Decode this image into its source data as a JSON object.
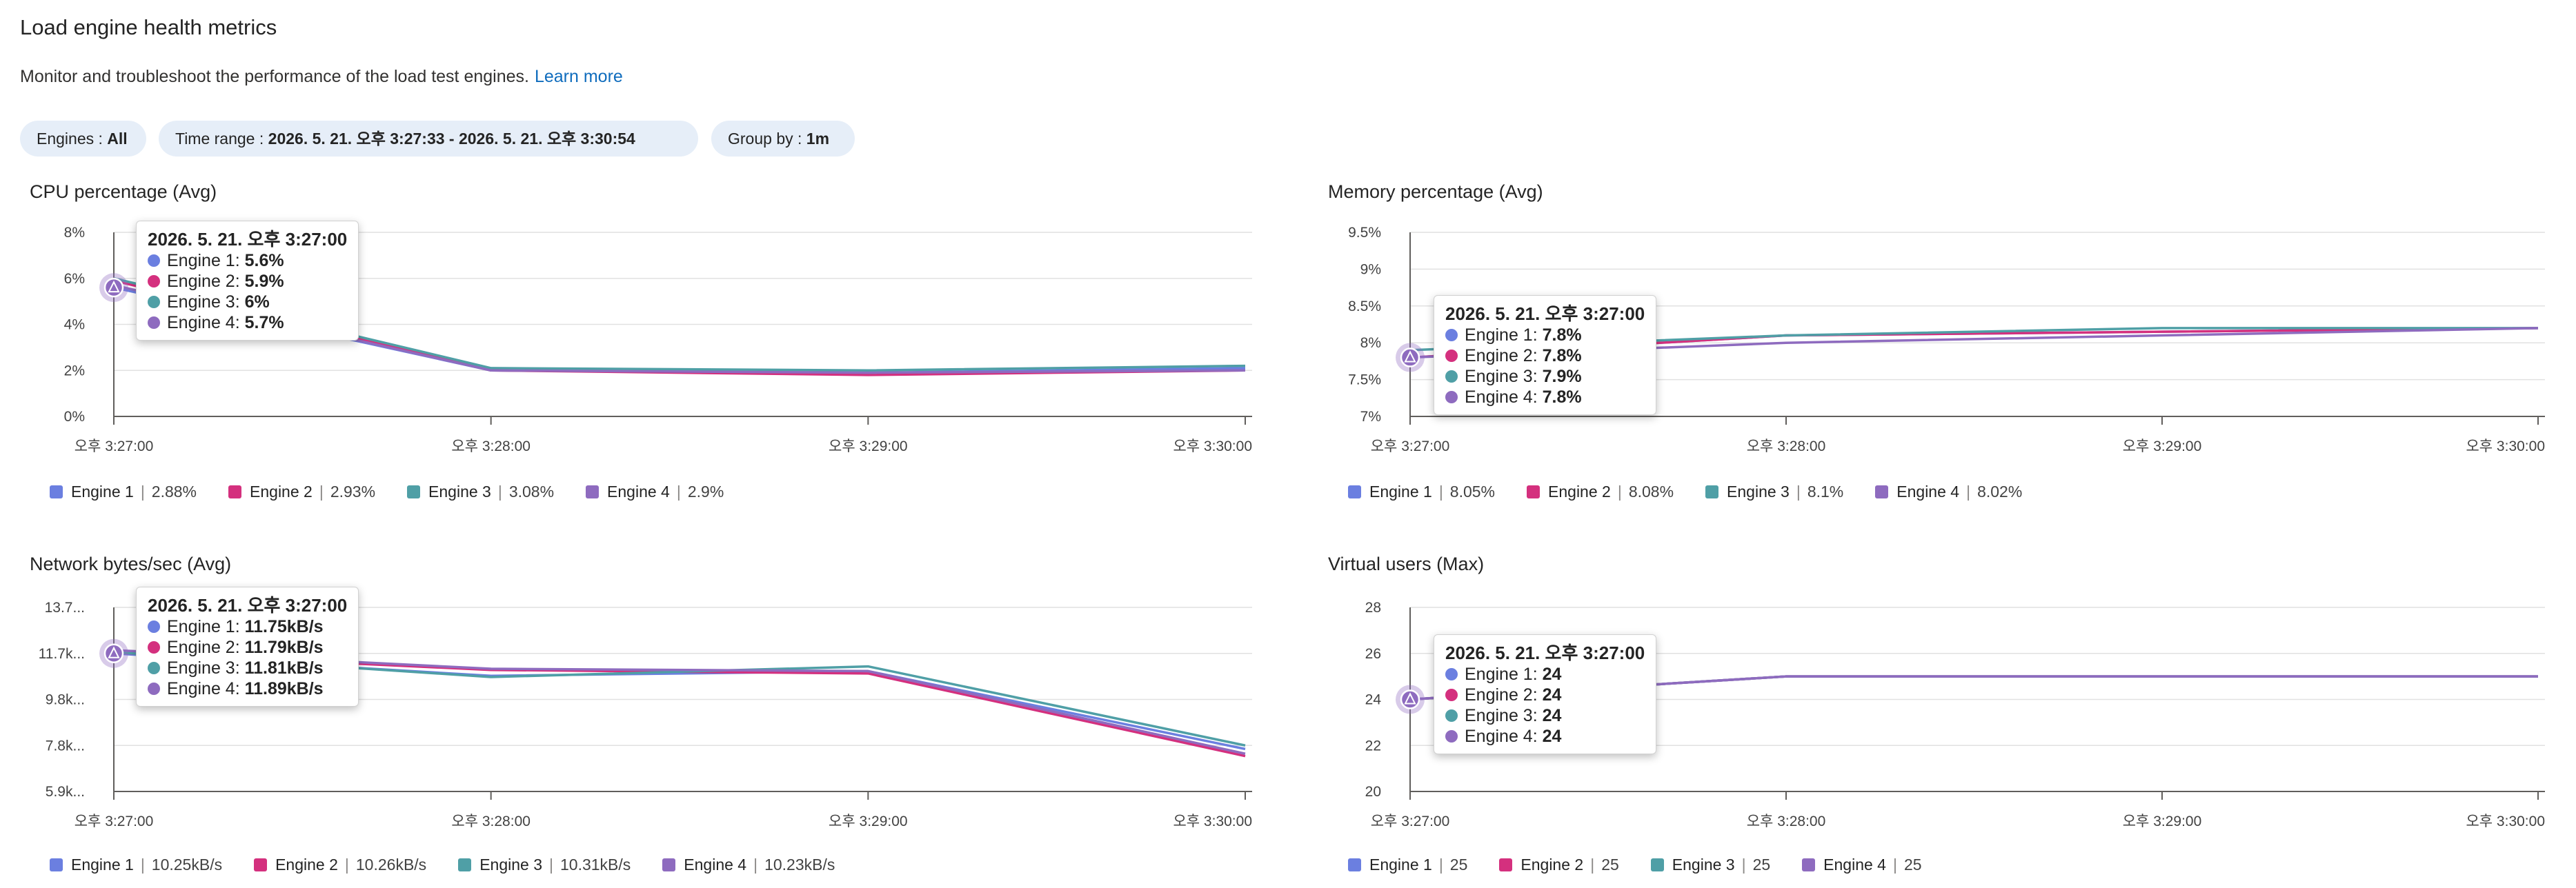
{
  "page": {
    "title": "Load engine health metrics",
    "description": "Monitor and troubleshoot the performance of the load test engines.",
    "learn_more": "Learn more"
  },
  "filters": [
    {
      "label": "Engines : ",
      "value": "All"
    },
    {
      "label": "Time range : ",
      "value": "2026. 5. 21. 오후 3:27:33 - 2026. 5. 21. 오후 3:30:54"
    },
    {
      "label": "Group by : ",
      "value": "1m"
    }
  ],
  "colors": {
    "engine1": "#6b7fe0",
    "engine2": "#d4307e",
    "engine3": "#4f9fa6",
    "engine4": "#8e6bbf",
    "grid": "#e1e1e1",
    "axis": "#605e5c"
  },
  "charts": [
    {
      "id": "cpu",
      "title": "CPU percentage (Avg)",
      "chart_data": {
        "type": "line",
        "x": [
          "오후 3:27:00",
          "오후 3:28:00",
          "오후 3:29:00",
          "오후 3:30:00"
        ],
        "ylim": [
          0,
          8
        ],
        "yticks": [
          "0%",
          "2%",
          "4%",
          "6%",
          "8%"
        ],
        "series": [
          {
            "name": "Engine 1",
            "values": [
              5.6,
              2.0,
              1.9,
              2.1
            ]
          },
          {
            "name": "Engine 2",
            "values": [
              5.9,
              2.0,
              1.8,
              2.0
            ]
          },
          {
            "name": "Engine 3",
            "values": [
              6.0,
              2.1,
              2.0,
              2.2
            ]
          },
          {
            "name": "Engine 4",
            "values": [
              5.7,
              2.0,
              1.9,
              2.0
            ]
          }
        ]
      },
      "legend": [
        {
          "name": "Engine 1",
          "value": "2.88%"
        },
        {
          "name": "Engine 2",
          "value": "2.93%"
        },
        {
          "name": "Engine 3",
          "value": "3.08%"
        },
        {
          "name": "Engine 4",
          "value": "2.9%"
        }
      ],
      "tooltip": {
        "title": "2026. 5. 21. 오후 3:27:00",
        "rows": [
          {
            "label": "Engine 1: ",
            "value": "5.6%"
          },
          {
            "label": "Engine 2: ",
            "value": "5.9%"
          },
          {
            "label": "Engine 3: ",
            "value": "6%"
          },
          {
            "label": "Engine 4: ",
            "value": "5.7%"
          }
        ]
      }
    },
    {
      "id": "memory",
      "title": "Memory percentage (Avg)",
      "chart_data": {
        "type": "line",
        "x": [
          "오후 3:27:00",
          "오후 3:28:00",
          "오후 3:29:00",
          "오후 3:30:00"
        ],
        "ylim": [
          7,
          9.5
        ],
        "yticks": [
          "7%",
          "7.5%",
          "8%",
          "8.5%",
          "9%",
          "9.5%"
        ],
        "series": [
          {
            "name": "Engine 1",
            "values": [
              7.8,
              8.1,
              8.15,
              8.2
            ]
          },
          {
            "name": "Engine 2",
            "values": [
              7.8,
              8.1,
              8.15,
              8.2
            ]
          },
          {
            "name": "Engine 3",
            "values": [
              7.9,
              8.1,
              8.2,
              8.2
            ]
          },
          {
            "name": "Engine 4",
            "values": [
              7.8,
              8.0,
              8.1,
              8.2
            ]
          }
        ]
      },
      "legend": [
        {
          "name": "Engine 1",
          "value": "8.05%"
        },
        {
          "name": "Engine 2",
          "value": "8.08%"
        },
        {
          "name": "Engine 3",
          "value": "8.1%"
        },
        {
          "name": "Engine 4",
          "value": "8.02%"
        }
      ],
      "tooltip": {
        "title": "2026. 5. 21. 오후 3:27:00",
        "rows": [
          {
            "label": "Engine 1: ",
            "value": "7.8%"
          },
          {
            "label": "Engine 2: ",
            "value": "7.8%"
          },
          {
            "label": "Engine 3: ",
            "value": "7.9%"
          },
          {
            "label": "Engine 4: ",
            "value": "7.8%"
          }
        ]
      }
    },
    {
      "id": "network",
      "title": "Network bytes/sec (Avg)",
      "chart_data": {
        "type": "line",
        "x": [
          "오후 3:27:00",
          "오후 3:28:00",
          "오후 3:29:00",
          "오후 3:30:00"
        ],
        "ylim": [
          5.9,
          13.7
        ],
        "ytick_values": [
          5.9,
          7.85,
          9.8,
          11.75,
          13.7
        ],
        "yticks": [
          "5.9k...",
          "7.8k...",
          "9.8k...",
          "11.7k...",
          "13.7..."
        ],
        "series": [
          {
            "name": "Engine 1",
            "values": [
              11.75,
              10.8,
              11.0,
              7.7
            ]
          },
          {
            "name": "Engine 2",
            "values": [
              11.79,
              11.05,
              10.9,
              7.4
            ]
          },
          {
            "name": "Engine 3",
            "values": [
              11.81,
              10.75,
              11.2,
              7.85
            ]
          },
          {
            "name": "Engine 4",
            "values": [
              11.89,
              11.1,
              11.0,
              7.5
            ]
          }
        ]
      },
      "legend": [
        {
          "name": "Engine 1",
          "value": "10.25kB/s"
        },
        {
          "name": "Engine 2",
          "value": "10.26kB/s"
        },
        {
          "name": "Engine 3",
          "value": "10.31kB/s"
        },
        {
          "name": "Engine 4",
          "value": "10.23kB/s"
        }
      ],
      "tooltip": {
        "title": "2026. 5. 21. 오후 3:27:00",
        "rows": [
          {
            "label": "Engine 1: ",
            "value": "11.75kB/s"
          },
          {
            "label": "Engine 2: ",
            "value": "11.79kB/s"
          },
          {
            "label": "Engine 3: ",
            "value": "11.81kB/s"
          },
          {
            "label": "Engine 4: ",
            "value": "11.89kB/s"
          }
        ]
      }
    },
    {
      "id": "vusers",
      "title": "Virtual users (Max)",
      "chart_data": {
        "type": "line",
        "x": [
          "오후 3:27:00",
          "오후 3:28:00",
          "오후 3:29:00",
          "오후 3:30:00"
        ],
        "ylim": [
          20,
          28
        ],
        "yticks": [
          "20",
          "22",
          "24",
          "26",
          "28"
        ],
        "series": [
          {
            "name": "Engine 1",
            "values": [
              24,
              25,
              25,
              25
            ]
          },
          {
            "name": "Engine 2",
            "values": [
              24,
              25,
              25,
              25
            ]
          },
          {
            "name": "Engine 3",
            "values": [
              24,
              25,
              25,
              25
            ]
          },
          {
            "name": "Engine 4",
            "values": [
              24,
              25,
              25,
              25
            ]
          }
        ]
      },
      "legend": [
        {
          "name": "Engine 1",
          "value": "25"
        },
        {
          "name": "Engine 2",
          "value": "25"
        },
        {
          "name": "Engine 3",
          "value": "25"
        },
        {
          "name": "Engine 4",
          "value": "25"
        }
      ],
      "tooltip": {
        "title": "2026. 5. 21. 오후 3:27:00",
        "rows": [
          {
            "label": "Engine 1: ",
            "value": "24"
          },
          {
            "label": "Engine 2: ",
            "value": "24"
          },
          {
            "label": "Engine 3: ",
            "value": "24"
          },
          {
            "label": "Engine 4: ",
            "value": "24"
          }
        ]
      }
    }
  ]
}
